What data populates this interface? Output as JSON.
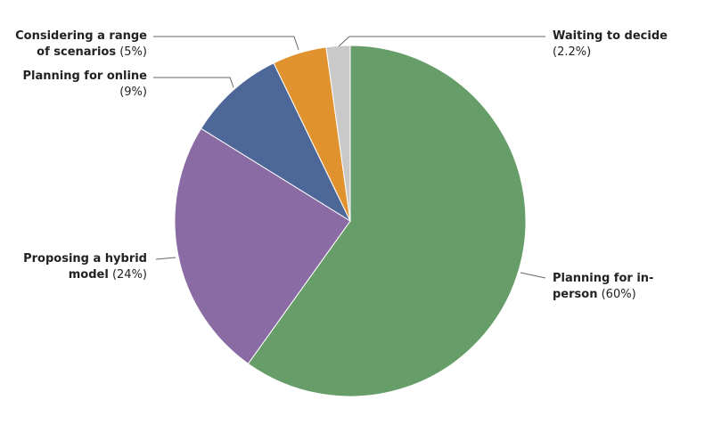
{
  "chart_data": {
    "type": "pie",
    "categories": [
      "Planning for in-person",
      "Proposing a hybrid model",
      "Planning for online",
      "Considering a range of scenarios",
      "Waiting to decide"
    ],
    "values": [
      60,
      24,
      9,
      5,
      2.2
    ],
    "value_labels": [
      "(60%)",
      "(24%)",
      "(9%)",
      "(5%)",
      "(2.2%)"
    ],
    "colors": [
      "#669d69",
      "#8b6ba3",
      "#4e6799",
      "#e0922f",
      "#c9c9c9"
    ]
  }
}
